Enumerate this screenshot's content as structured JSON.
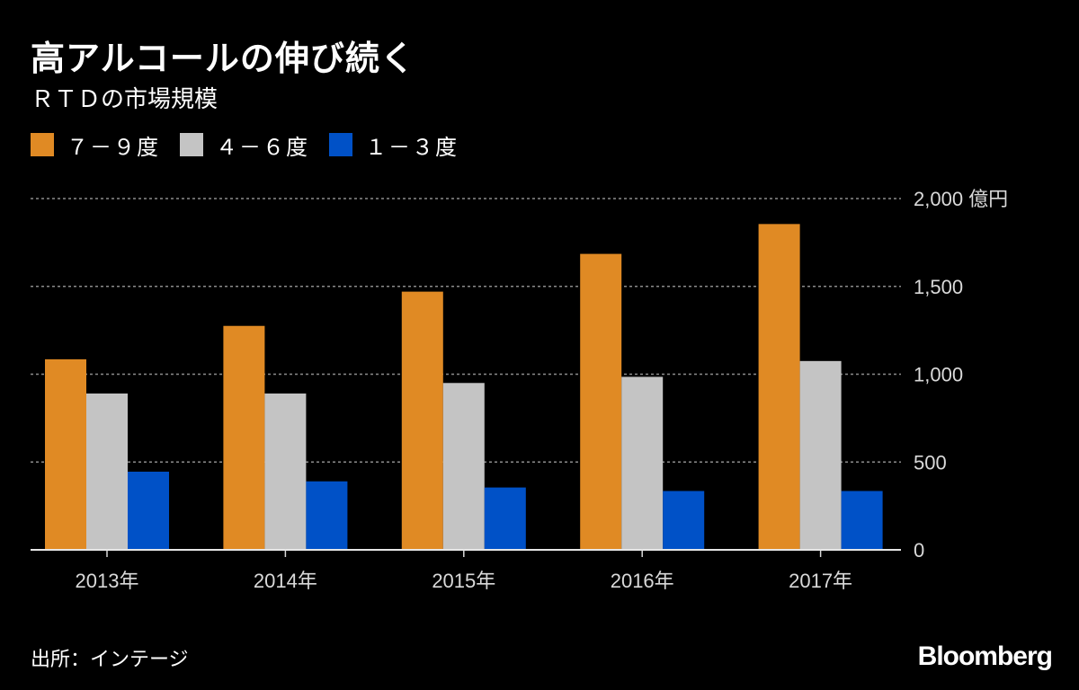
{
  "header": {
    "title": "高アルコールの伸び続く",
    "subtitle": "ＲＴＤの市場規模"
  },
  "footer": {
    "source": "出所：インテージ",
    "logo": "Bloomberg"
  },
  "colors": {
    "background": "#000000",
    "text": "#ffffff",
    "axis_text": "#d9d9d9",
    "grid": "#8c8c8c",
    "series_7_9": "#e08a24",
    "series_4_6": "#c4c4c4",
    "series_1_3": "#0051c7"
  },
  "chart_data": {
    "type": "bar",
    "title": "高アルコールの伸び続く",
    "subtitle": "ＲＴＤの市場規模",
    "categories": [
      "2013年",
      "2014年",
      "2015年",
      "2016年",
      "2017年"
    ],
    "series": [
      {
        "name": "７－９度",
        "color": "#e08a24",
        "values": [
          1085,
          1275,
          1470,
          1685,
          1855
        ]
      },
      {
        "name": "４－６度",
        "color": "#c4c4c4",
        "values": [
          890,
          890,
          950,
          985,
          1075
        ]
      },
      {
        "name": "１－３度",
        "color": "#0051c7",
        "values": [
          445,
          390,
          355,
          335,
          335
        ]
      }
    ],
    "ylim": [
      0,
      2000
    ],
    "yticks": [
      {
        "value": 0,
        "label": "0"
      },
      {
        "value": 500,
        "label": "500"
      },
      {
        "value": 1000,
        "label": "1,000"
      },
      {
        "value": 1500,
        "label": "1,500"
      },
      {
        "value": 2000,
        "label": "2,000 億円"
      }
    ],
    "xlabel": "",
    "ylabel": "億円",
    "grid": true,
    "legend_position": "top-left",
    "y_axis_side": "right"
  }
}
